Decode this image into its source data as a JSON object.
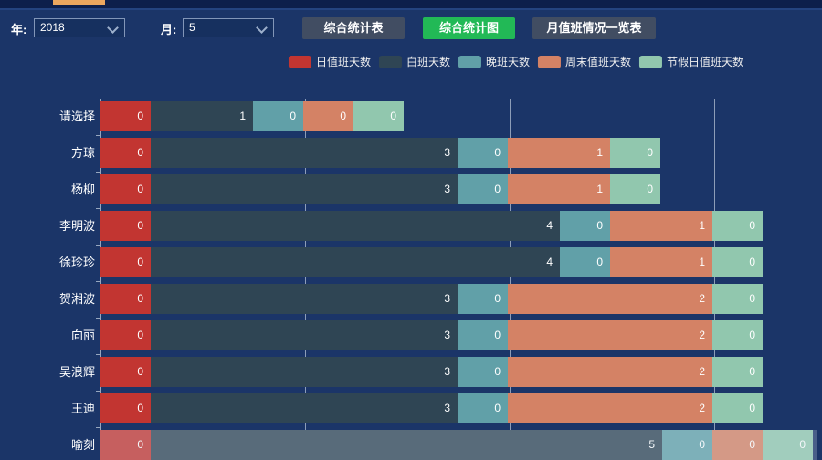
{
  "colors": {
    "page_bg": "#1b3568",
    "top_indicator": "#eba75f",
    "active_button_green": "#22b956",
    "default_button": "#414d62"
  },
  "filters": {
    "year_label": "年:",
    "year_value": "2018",
    "month_label": "月:",
    "month_value": "5"
  },
  "buttons": [
    {
      "label": "综合统计表",
      "style": "default"
    },
    {
      "label": "综合统计图",
      "style": "active"
    },
    {
      "label": "月值班情况一览表",
      "style": "default"
    }
  ],
  "legend": [
    {
      "label": "日值班天数",
      "color": "#c23531"
    },
    {
      "label": "白班天数",
      "color": "#2f4554"
    },
    {
      "label": "晚班天数",
      "color": "#61a0a8"
    },
    {
      "label": "周末值班天数",
      "color": "#d48265"
    },
    {
      "label": "节假日值班天数",
      "color": "#91c7ae"
    }
  ],
  "chart_data": {
    "type": "bar",
    "orientation": "horizontal",
    "stacked": true,
    "grid": true,
    "legend_position": "top",
    "value_labels": "inside-right",
    "categories": [
      "请选择",
      "方琼",
      "杨柳",
      "李明波",
      "徐珍珍",
      "贺湘波",
      "向丽",
      "吴浪辉",
      "王迪",
      "喻刻"
    ],
    "series": [
      {
        "name": "日值班天数",
        "color": "#c23531",
        "values": [
          0,
          0,
          0,
          0,
          0,
          0,
          0,
          0,
          0,
          0
        ]
      },
      {
        "name": "白班天数",
        "color": "#2f4554",
        "values": [
          1,
          3,
          3,
          4,
          4,
          3,
          3,
          3,
          3,
          5
        ]
      },
      {
        "name": "晚班天数",
        "color": "#61a0a8",
        "values": [
          0,
          0,
          0,
          0,
          0,
          0,
          0,
          0,
          0,
          0
        ]
      },
      {
        "name": "周末值班天数",
        "color": "#d48265",
        "values": [
          0,
          1,
          1,
          1,
          1,
          2,
          2,
          2,
          2,
          0
        ]
      },
      {
        "name": "节假日值班天数",
        "color": "#91c7ae",
        "values": [
          0,
          0,
          0,
          0,
          0,
          0,
          0,
          0,
          0,
          0
        ]
      }
    ],
    "xlim": [
      0,
      7
    ],
    "gridline_units": [
      2,
      4,
      6,
      7
    ],
    "highlighted_category": "喻刻"
  }
}
